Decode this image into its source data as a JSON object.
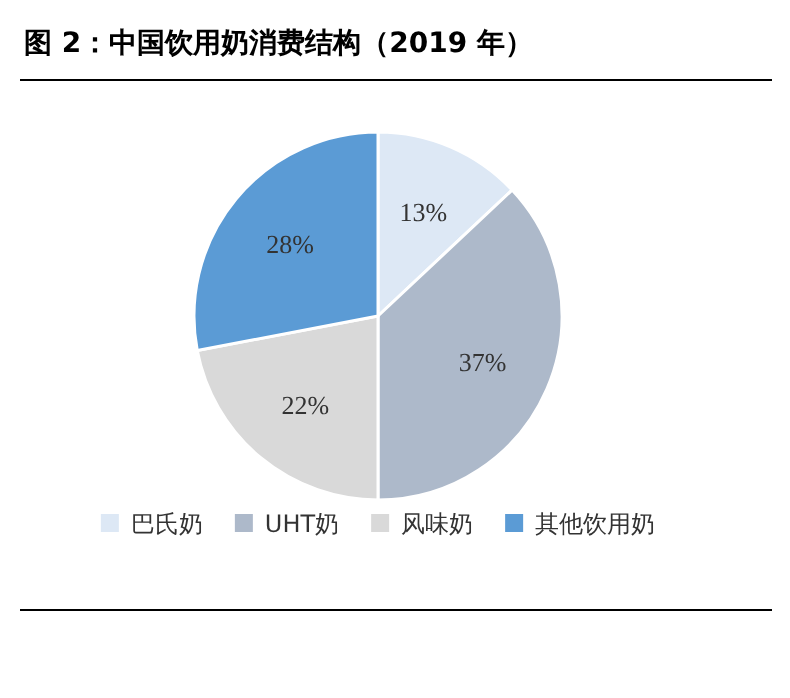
{
  "chart_data": {
    "type": "pie",
    "title": "图 2：中国饮用奶消费结构（2019 年）",
    "categories": [
      "巴氏奶",
      "UHT奶",
      "风味奶",
      "其他饮用奶"
    ],
    "values": [
      13,
      37,
      22,
      28
    ],
    "colors": [
      "#dde8f5",
      "#adb9ca",
      "#d9d9d9",
      "#5b9bd5"
    ],
    "value_labels": [
      "13%",
      "37%",
      "22%",
      "28%"
    ],
    "legend": "bottom"
  }
}
